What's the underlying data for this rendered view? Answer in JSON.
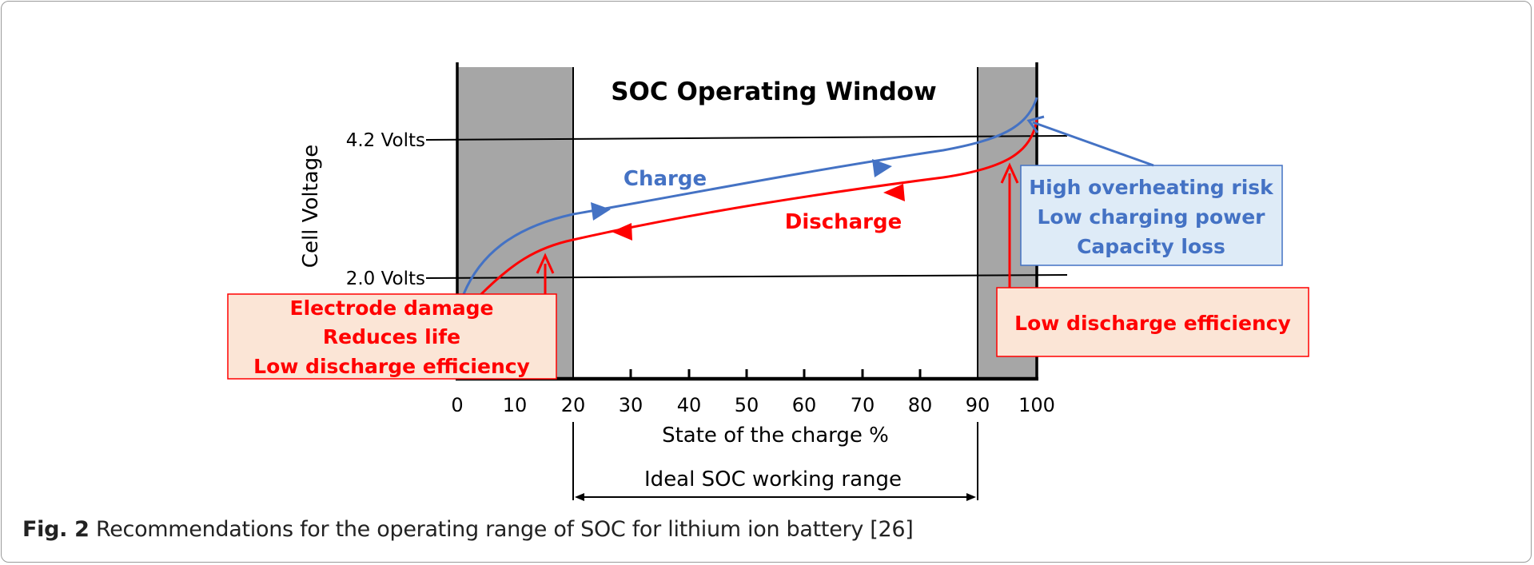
{
  "diagram": {
    "title": "SOC Operating Window",
    "y_axis_label": "Cell Voltage",
    "x_axis_label": "State of the charge %",
    "x_ticks": [
      "0",
      "10",
      "20",
      "30",
      "40",
      "50",
      "60",
      "70",
      "80",
      "90",
      "100"
    ],
    "voltage_lines": [
      "4.2 Volts",
      "2.0 Volts"
    ],
    "curves": {
      "charge": "Charge",
      "discharge": "Discharge"
    },
    "left_box": {
      "lines": [
        "Electrode damage",
        "Reduces life",
        "Low discharge efficiency"
      ]
    },
    "right_blue_box": {
      "lines": [
        "High overheating risk",
        "Low charging power",
        "Capacity loss"
      ]
    },
    "right_red_box": {
      "label": "Low discharge efficiency"
    },
    "ideal_range_label": "Ideal SOC working range",
    "colors": {
      "charge": "#4472c4",
      "discharge": "#ff0000",
      "shaded": "#a6a6a6",
      "red_box_fill": "#fbe5d6",
      "blue_box_fill": "#deebf7"
    }
  },
  "caption": {
    "fig_label": "Fig. 2",
    "text": "Recommendations for the operating range of SOC for lithium ion battery [26]"
  }
}
